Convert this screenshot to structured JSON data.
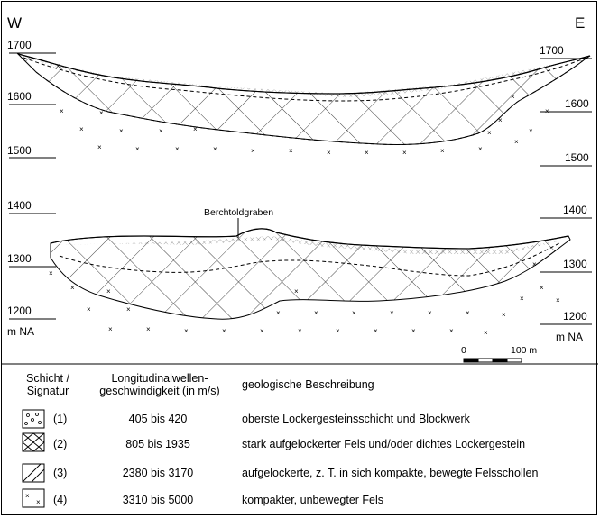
{
  "direction": {
    "west": "W",
    "east": "E"
  },
  "profile_top": {
    "left_ticks": [
      "1700",
      "1600",
      "1500"
    ],
    "right_ticks": [
      "1700",
      "1600",
      "1500"
    ]
  },
  "profile_bottom": {
    "left_ticks": [
      "1400",
      "1300",
      "1200"
    ],
    "right_ticks": [
      "1400",
      "1300",
      "1200"
    ],
    "unit_left": "m NA",
    "unit_right": "m NA",
    "feature_label": "Berchtoldgraben"
  },
  "scale_bar": {
    "start_label": "0",
    "end_label": "100 m"
  },
  "legend": {
    "header_layer_line1": "Schicht /",
    "header_layer_line2": "Signatur",
    "header_velocity_line1": "Longitudinalwellen-",
    "header_velocity_line2": "geschwindigkeit (in m/s)",
    "header_description": "geologische Beschreibung",
    "rows": [
      {
        "num": "(1)",
        "velocity": "405 bis 420",
        "description": "oberste Lockergesteinsschicht und Blockwerk",
        "symbol": "circles"
      },
      {
        "num": "(2)",
        "velocity": "805 bis 1935",
        "description": "stark aufgelockerter Fels und/oder dichtes Lockergestein",
        "symbol": "cross-hatch"
      },
      {
        "num": "(3)",
        "velocity": "2380 bis 3170",
        "description": "aufgelockerte, z. T. in sich kompakte, bewegte Felsschollen",
        "symbol": "single-hatch"
      },
      {
        "num": "(4)",
        "velocity": "3310 bis 5000",
        "description": "kompakter, unbewegter Fels",
        "symbol": "crosses"
      }
    ]
  }
}
